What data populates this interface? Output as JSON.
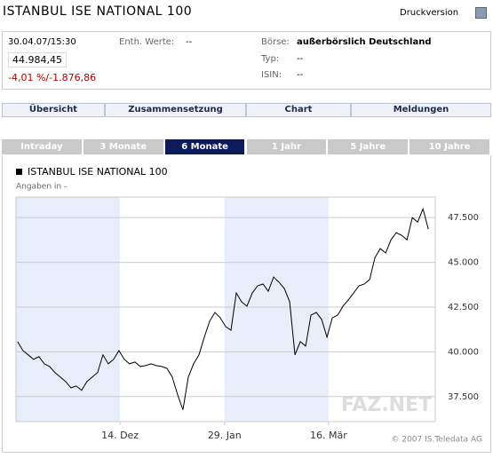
{
  "header": {
    "title": "ISTANBUL ISE NATIONAL 100",
    "print": "Druckversion"
  },
  "quote": {
    "datetime": "30.04.07/15:30",
    "price": "44.984,45",
    "change": "-4,01 %/-1.876,86",
    "fields": [
      {
        "label": "Enth. Werte:",
        "value": "--"
      },
      {
        "label": "Börse:",
        "value": "außerbörslich Deutschland"
      },
      {
        "label": "Typ:",
        "value": "--"
      },
      {
        "label": "ISIN:",
        "value": "--"
      }
    ]
  },
  "nav_tabs": [
    "Übersicht",
    "Zusammensetzung",
    "Chart",
    "Meldungen"
  ],
  "period_tabs": [
    "Intraday",
    "3 Monate",
    "6 Monate",
    "1 Jahr",
    "5 Jahre",
    "10 Jahre"
  ],
  "active_period_index": 2,
  "chart_data": {
    "type": "line",
    "title": "ISTANBUL ISE NATIONAL 100",
    "subtitle": "Angaben in -",
    "watermark": "FAZ.NET",
    "source": "© 2007 IS.Teledata AG",
    "color": "#000000",
    "grid": true,
    "values": [
      40570,
      40070,
      39830,
      39580,
      39730,
      39330,
      39180,
      38840,
      38590,
      38340,
      37990,
      38090,
      37850,
      38340,
      38590,
      38840,
      39830,
      39330,
      39580,
      40070,
      39580,
      39330,
      39430,
      39180,
      39230,
      39330,
      39230,
      39180,
      39080,
      38590,
      37600,
      36760,
      38590,
      39330,
      39830,
      40820,
      41710,
      42200,
      41900,
      41410,
      41210,
      43290,
      42790,
      42550,
      43290,
      43690,
      43790,
      43390,
      44180,
      43890,
      43540,
      42800,
      39830,
      40570,
      40320,
      42050,
      42200,
      41810,
      40820,
      41900,
      42050,
      42550,
      42900,
      43290,
      43690,
      43790,
      44040,
      45270,
      45770,
      45520,
      46260,
      46660,
      46510,
      46260,
      47500,
      47250,
      47990,
      46860
    ],
    "xlim": [
      -0.3,
      78.3
    ],
    "xticks": [
      {
        "value": 19.2,
        "label": "14. Dez"
      },
      {
        "value": 38.8,
        "label": "29. Jan"
      },
      {
        "value": 58.3,
        "label": "16. Mär"
      }
    ],
    "ylim": [
      36100,
      48650
    ],
    "yticks": [
      {
        "value": 37500,
        "label": "37.500"
      },
      {
        "value": 40000,
        "label": "40.000"
      },
      {
        "value": 42500,
        "label": "42.500"
      },
      {
        "value": 45000,
        "label": "45.000"
      },
      {
        "value": 47500,
        "label": "47.500"
      }
    ]
  }
}
